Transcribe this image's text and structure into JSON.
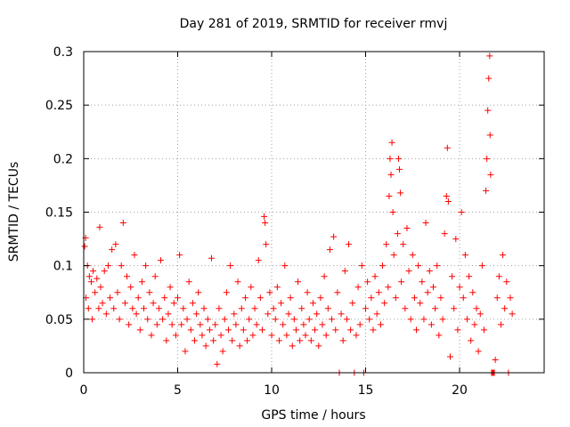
{
  "chart_data": {
    "type": "scatter",
    "title": "Day 281 of 2019, SRMTID for receiver rmvj",
    "xlabel": "GPS time / hours",
    "ylabel": "SRMTID / TECUs",
    "xlim": [
      0,
      24.5
    ],
    "ylim": [
      0,
      0.3
    ],
    "x_ticks": [
      0,
      5,
      10,
      15,
      20
    ],
    "x_tick_labels": [
      "0",
      "5",
      "10",
      "15",
      "20"
    ],
    "y_ticks": [
      0,
      0.05,
      0.1,
      0.15,
      0.2,
      0.25,
      0.3
    ],
    "y_tick_labels": [
      "0",
      "0.05",
      "0.1",
      "0.15",
      "0.2",
      "0.25",
      "0.3"
    ],
    "grid": true,
    "marker": "+",
    "color": "#ff0000",
    "series": [
      {
        "name": "rmvj",
        "points": [
          [
            0.05,
            0.118
          ],
          [
            0.1,
            0.126
          ],
          [
            0.12,
            0.07
          ],
          [
            0.2,
            0.1
          ],
          [
            0.25,
            0.06
          ],
          [
            0.3,
            0.09
          ],
          [
            0.4,
            0.085
          ],
          [
            0.45,
            0.05
          ],
          [
            0.5,
            0.095
          ],
          [
            0.6,
            0.075
          ],
          [
            0.7,
            0.088
          ],
          [
            0.8,
            0.06
          ],
          [
            0.85,
            0.136
          ],
          [
            0.9,
            0.08
          ],
          [
            1.0,
            0.065
          ],
          [
            1.1,
            0.095
          ],
          [
            1.2,
            0.055
          ],
          [
            1.3,
            0.1
          ],
          [
            1.4,
            0.07
          ],
          [
            1.5,
            0.115
          ],
          [
            1.6,
            0.06
          ],
          [
            1.7,
            0.12
          ],
          [
            1.8,
            0.075
          ],
          [
            1.9,
            0.05
          ],
          [
            2.0,
            0.1
          ],
          [
            2.1,
            0.14
          ],
          [
            2.2,
            0.065
          ],
          [
            2.3,
            0.09
          ],
          [
            2.4,
            0.045
          ],
          [
            2.5,
            0.08
          ],
          [
            2.6,
            0.06
          ],
          [
            2.7,
            0.11
          ],
          [
            2.8,
            0.055
          ],
          [
            2.9,
            0.07
          ],
          [
            3.0,
            0.04
          ],
          [
            3.1,
            0.085
          ],
          [
            3.2,
            0.06
          ],
          [
            3.3,
            0.1
          ],
          [
            3.4,
            0.05
          ],
          [
            3.5,
            0.075
          ],
          [
            3.6,
            0.035
          ],
          [
            3.7,
            0.065
          ],
          [
            3.8,
            0.09
          ],
          [
            3.9,
            0.045
          ],
          [
            4.0,
            0.06
          ],
          [
            4.1,
            0.105
          ],
          [
            4.2,
            0.05
          ],
          [
            4.3,
            0.07
          ],
          [
            4.4,
            0.03
          ],
          [
            4.5,
            0.055
          ],
          [
            4.6,
            0.08
          ],
          [
            4.7,
            0.045
          ],
          [
            4.8,
            0.065
          ],
          [
            4.9,
            0.035
          ],
          [
            5.0,
            0.07
          ],
          [
            5.1,
            0.11
          ],
          [
            5.2,
            0.045
          ],
          [
            5.3,
            0.06
          ],
          [
            5.4,
            0.02
          ],
          [
            5.5,
            0.05
          ],
          [
            5.6,
            0.085
          ],
          [
            5.7,
            0.04
          ],
          [
            5.8,
            0.065
          ],
          [
            5.9,
            0.03
          ],
          [
            6.0,
            0.055
          ],
          [
            6.1,
            0.075
          ],
          [
            6.2,
            0.045
          ],
          [
            6.3,
            0.035
          ],
          [
            6.4,
            0.06
          ],
          [
            6.5,
            0.025
          ],
          [
            6.6,
            0.05
          ],
          [
            6.7,
            0.04
          ],
          [
            6.8,
            0.107
          ],
          [
            6.9,
            0.03
          ],
          [
            7.0,
            0.045
          ],
          [
            7.1,
            0.008
          ],
          [
            7.2,
            0.06
          ],
          [
            7.3,
            0.035
          ],
          [
            7.4,
            0.02
          ],
          [
            7.5,
            0.05
          ],
          [
            7.6,
            0.075
          ],
          [
            7.7,
            0.04
          ],
          [
            7.8,
            0.1
          ],
          [
            7.9,
            0.03
          ],
          [
            8.0,
            0.055
          ],
          [
            8.1,
            0.045
          ],
          [
            8.2,
            0.085
          ],
          [
            8.3,
            0.025
          ],
          [
            8.4,
            0.06
          ],
          [
            8.5,
            0.04
          ],
          [
            8.6,
            0.07
          ],
          [
            8.7,
            0.03
          ],
          [
            8.8,
            0.05
          ],
          [
            8.9,
            0.08
          ],
          [
            9.0,
            0.035
          ],
          [
            9.1,
            0.06
          ],
          [
            9.2,
            0.045
          ],
          [
            9.3,
            0.105
          ],
          [
            9.4,
            0.07
          ],
          [
            9.5,
            0.04
          ],
          [
            9.6,
            0.146
          ],
          [
            9.65,
            0.14
          ],
          [
            9.7,
            0.12
          ],
          [
            9.8,
            0.055
          ],
          [
            9.9,
            0.075
          ],
          [
            10.0,
            0.035
          ],
          [
            10.1,
            0.06
          ],
          [
            10.2,
            0.05
          ],
          [
            10.3,
            0.08
          ],
          [
            10.4,
            0.03
          ],
          [
            10.5,
            0.065
          ],
          [
            10.6,
            0.045
          ],
          [
            10.7,
            0.1
          ],
          [
            10.8,
            0.035
          ],
          [
            10.9,
            0.055
          ],
          [
            11.0,
            0.07
          ],
          [
            11.1,
            0.025
          ],
          [
            11.2,
            0.05
          ],
          [
            11.3,
            0.04
          ],
          [
            11.4,
            0.085
          ],
          [
            11.5,
            0.03
          ],
          [
            11.6,
            0.06
          ],
          [
            11.7,
            0.045
          ],
          [
            11.8,
            0.035
          ],
          [
            11.9,
            0.075
          ],
          [
            12.0,
            0.05
          ],
          [
            12.1,
            0.03
          ],
          [
            12.2,
            0.065
          ],
          [
            12.3,
            0.04
          ],
          [
            12.4,
            0.055
          ],
          [
            12.5,
            0.025
          ],
          [
            12.6,
            0.07
          ],
          [
            12.7,
            0.045
          ],
          [
            12.8,
            0.09
          ],
          [
            12.9,
            0.035
          ],
          [
            13.0,
            0.06
          ],
          [
            13.1,
            0.115
          ],
          [
            13.2,
            0.05
          ],
          [
            13.3,
            0.127
          ],
          [
            13.4,
            0.04
          ],
          [
            13.5,
            0.075
          ],
          [
            13.6,
            0.0
          ],
          [
            13.7,
            0.055
          ],
          [
            13.8,
            0.03
          ],
          [
            13.9,
            0.095
          ],
          [
            14.0,
            0.05
          ],
          [
            14.1,
            0.12
          ],
          [
            14.2,
            0.04
          ],
          [
            14.3,
            0.065
          ],
          [
            14.4,
            0.0
          ],
          [
            14.5,
            0.035
          ],
          [
            14.6,
            0.08
          ],
          [
            14.7,
            0.045
          ],
          [
            14.8,
            0.1
          ],
          [
            14.9,
            0.0
          ],
          [
            15.0,
            0.06
          ],
          [
            15.1,
            0.085
          ],
          [
            15.2,
            0.05
          ],
          [
            15.3,
            0.07
          ],
          [
            15.4,
            0.04
          ],
          [
            15.5,
            0.09
          ],
          [
            15.6,
            0.055
          ],
          [
            15.7,
            0.075
          ],
          [
            15.8,
            0.045
          ],
          [
            15.9,
            0.1
          ],
          [
            16.0,
            0.065
          ],
          [
            16.1,
            0.12
          ],
          [
            16.2,
            0.08
          ],
          [
            16.25,
            0.165
          ],
          [
            16.3,
            0.2
          ],
          [
            16.35,
            0.185
          ],
          [
            16.4,
            0.215
          ],
          [
            16.45,
            0.15
          ],
          [
            16.5,
            0.11
          ],
          [
            16.6,
            0.07
          ],
          [
            16.7,
            0.13
          ],
          [
            16.75,
            0.2
          ],
          [
            16.8,
            0.19
          ],
          [
            16.85,
            0.168
          ],
          [
            16.9,
            0.085
          ],
          [
            17.0,
            0.12
          ],
          [
            17.1,
            0.06
          ],
          [
            17.2,
            0.135
          ],
          [
            17.3,
            0.095
          ],
          [
            17.4,
            0.05
          ],
          [
            17.5,
            0.11
          ],
          [
            17.6,
            0.07
          ],
          [
            17.7,
            0.04
          ],
          [
            17.8,
            0.1
          ],
          [
            17.9,
            0.065
          ],
          [
            18.0,
            0.085
          ],
          [
            18.1,
            0.05
          ],
          [
            18.2,
            0.14
          ],
          [
            18.3,
            0.075
          ],
          [
            18.4,
            0.095
          ],
          [
            18.5,
            0.045
          ],
          [
            18.6,
            0.08
          ],
          [
            18.7,
            0.06
          ],
          [
            18.8,
            0.1
          ],
          [
            18.9,
            0.035
          ],
          [
            19.0,
            0.07
          ],
          [
            19.1,
            0.05
          ],
          [
            19.2,
            0.13
          ],
          [
            19.3,
            0.165
          ],
          [
            19.35,
            0.21
          ],
          [
            19.4,
            0.16
          ],
          [
            19.5,
            0.015
          ],
          [
            19.6,
            0.09
          ],
          [
            19.7,
            0.06
          ],
          [
            19.8,
            0.125
          ],
          [
            19.9,
            0.04
          ],
          [
            20.0,
            0.08
          ],
          [
            20.1,
            0.15
          ],
          [
            20.2,
            0.07
          ],
          [
            20.3,
            0.11
          ],
          [
            20.4,
            0.05
          ],
          [
            20.5,
            0.09
          ],
          [
            20.6,
            0.03
          ],
          [
            20.7,
            0.075
          ],
          [
            20.8,
            0.045
          ],
          [
            20.9,
            0.06
          ],
          [
            21.0,
            0.02
          ],
          [
            21.1,
            0.055
          ],
          [
            21.2,
            0.1
          ],
          [
            21.3,
            0.04
          ],
          [
            21.4,
            0.17
          ],
          [
            21.45,
            0.2
          ],
          [
            21.5,
            0.245
          ],
          [
            21.55,
            0.275
          ],
          [
            21.6,
            0.296
          ],
          [
            21.62,
            0.222
          ],
          [
            21.65,
            0.185
          ],
          [
            21.7,
            0.0
          ],
          [
            21.75,
            0.0
          ],
          [
            21.8,
            0.0
          ],
          [
            21.85,
            0.0
          ],
          [
            21.9,
            0.012
          ],
          [
            22.0,
            0.07
          ],
          [
            22.1,
            0.09
          ],
          [
            22.2,
            0.045
          ],
          [
            22.3,
            0.11
          ],
          [
            22.4,
            0.06
          ],
          [
            22.5,
            0.085
          ],
          [
            22.6,
            0.0
          ],
          [
            22.7,
            0.07
          ],
          [
            22.8,
            0.055
          ]
        ]
      }
    ]
  }
}
